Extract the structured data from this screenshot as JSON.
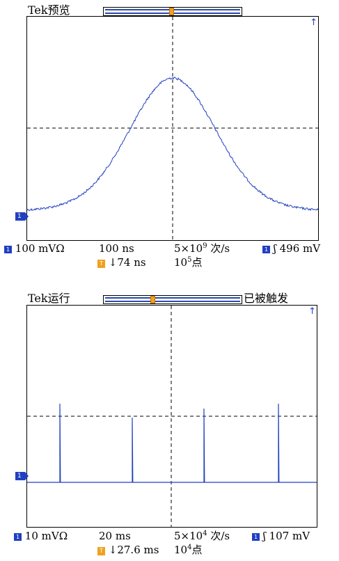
{
  "panels": [
    {
      "status_left": "Tek预览",
      "status_right": "",
      "trigger_badge": "T",
      "channel_badge": "1",
      "readout": {
        "ch1_scale": "100 mVΩ",
        "time_scale": "100 ns",
        "sample_rate_base": "5×10",
        "sample_rate_exp": "9",
        "sample_rate_unit": " 次/s",
        "trigger_level": "496 mV",
        "trigger_position": "↓74 ns",
        "record_length_base": "10",
        "record_length_exp": "5",
        "record_length_unit": "点"
      }
    },
    {
      "status_left": "Tek运行",
      "status_right": "已被触发",
      "trigger_badge": "T",
      "channel_badge": "1",
      "readout": {
        "ch1_scale": "10 mVΩ",
        "time_scale": "20 ms",
        "sample_rate_base": "5×10",
        "sample_rate_exp": "4",
        "sample_rate_unit": " 次/s",
        "trigger_level": "107 mV",
        "trigger_position": "↓27.6 ms",
        "record_length_base": "10",
        "record_length_exp": "4",
        "record_length_unit": "点"
      }
    }
  ],
  "colors": {
    "trace": "#2040c0",
    "trigger": "#f0a020"
  }
}
